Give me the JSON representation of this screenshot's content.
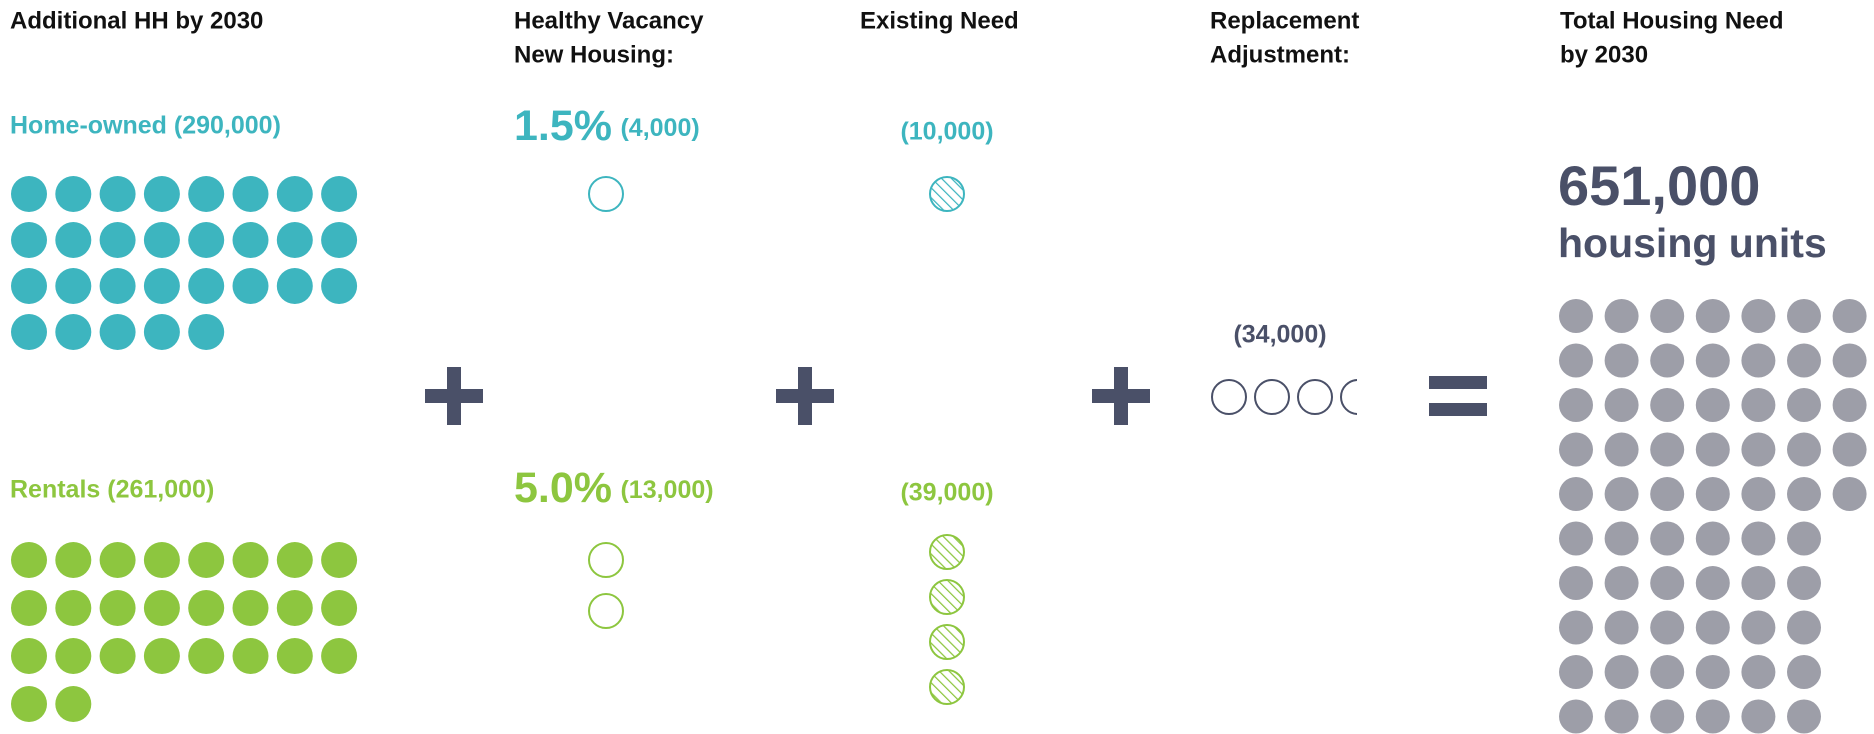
{
  "household": {
    "header": [
      "Additional HH by 2030"
    ],
    "owned": "Home-owned (290,000)",
    "rental": "Rentals (261,000)"
  },
  "vacancy": {
    "header": [
      "Healthy Vacancy",
      "New Housing:"
    ],
    "owned": {
      "rate": "1.5%",
      "count": "(4,000)"
    },
    "rental": {
      "rate": "5.0%",
      "count": "(13,000)"
    }
  },
  "existing": {
    "header": [
      "Existing Need"
    ],
    "owned": "(10,000)",
    "rental": "(39,000)"
  },
  "replacement": {
    "header": [
      "Replacement",
      "Adjustment:"
    ],
    "value": "(34,000)"
  },
  "total": {
    "header": [
      "Total Housing Need",
      "by 2030"
    ],
    "value": "651,000",
    "unit": "housing units"
  }
}
